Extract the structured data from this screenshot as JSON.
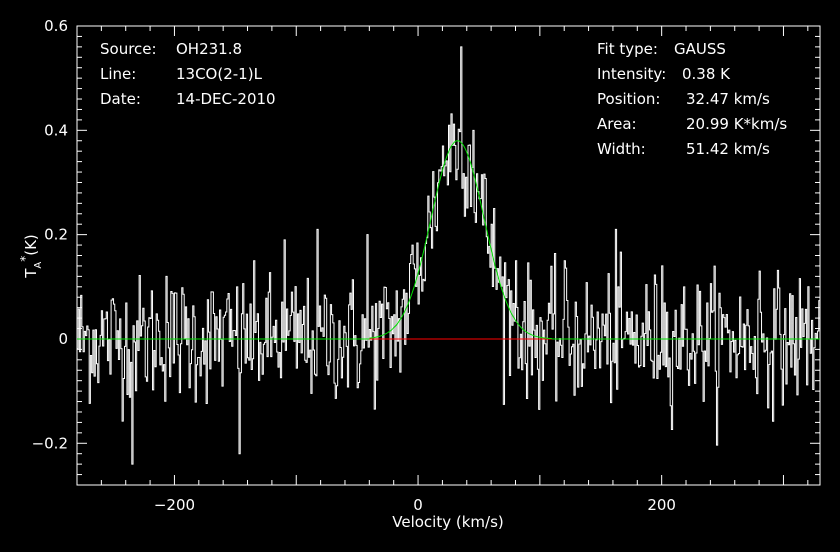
{
  "info": {
    "source_label": "Source:",
    "source_value": "OH231.8",
    "line_label": "Line:",
    "line_value": "13CO(2-1)L",
    "date_label": "Date:",
    "date_value": "14-DEC-2010"
  },
  "fit": {
    "type_label": "Fit type:",
    "type_value": "GAUSS",
    "intensity_label": "Intensity:",
    "intensity_value": "0.38 K",
    "position_label": "Position:",
    "position_value": "32.47 km/s",
    "area_label": "Area:",
    "area_value": "20.99 K*km/s",
    "width_label": "Width:",
    "width_value": "51.42 km/s"
  },
  "chart_data": {
    "type": "line",
    "xlabel": "Velocity (km/s)",
    "ylabel_main": "T",
    "ylabel_sub": "A",
    "ylabel_sup": "*",
    "ylabel_unit": "(K)",
    "xlim": [
      -280,
      330
    ],
    "ylim": [
      -0.28,
      0.6
    ],
    "x_ticks": [
      -200,
      0,
      200
    ],
    "x_tick_labels": [
      "−200",
      "0",
      "200"
    ],
    "y_ticks": [
      -0.2,
      0,
      0.2,
      0.4,
      0.6
    ],
    "y_tick_labels": [
      "−0.2",
      "0",
      "0.2",
      "0.4",
      "0.6"
    ],
    "spectrum": {
      "color": "#ffffff",
      "x_start": -280,
      "x_end": 330,
      "channel_width": 1.0,
      "noise_rms": 0.06,
      "note_points": [
        [
          -235,
          -0.24
        ],
        [
          -147,
          -0.22
        ],
        [
          -207,
          0.12
        ],
        [
          -110,
          0.19
        ],
        [
          -83,
          0.21
        ],
        [
          -42,
          0.2
        ],
        [
          -5,
          0.18
        ],
        [
          20,
          0.37
        ],
        [
          35,
          0.56
        ],
        [
          45,
          0.4
        ],
        [
          60,
          0.22
        ],
        [
          80,
          0.15
        ],
        [
          120,
          0.15
        ],
        [
          162,
          0.21
        ],
        [
          200,
          0.14
        ],
        [
          280,
          0.13
        ],
        [
          320,
          0.1
        ]
      ]
    },
    "gaussian_fit": {
      "color": "#00e000",
      "amplitude": 0.38,
      "center": 32.47,
      "fwhm": 51.42
    },
    "baseline": {
      "color": "#00e000",
      "y": 0
    },
    "fit_window": {
      "color": "#ff0000",
      "x_range": [
        -40,
        110
      ],
      "y": 0
    }
  }
}
